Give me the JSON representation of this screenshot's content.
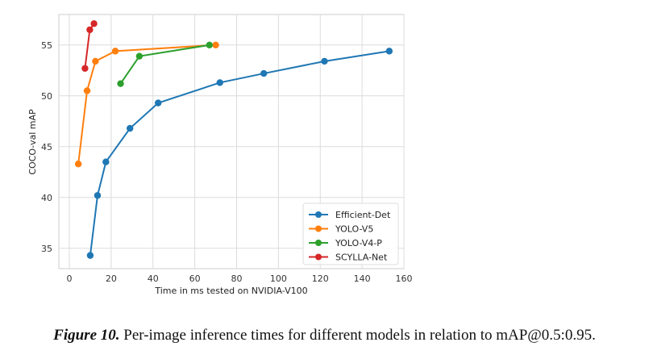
{
  "chart_data": {
    "type": "line",
    "xlabel": "Time in ms tested on NVIDIA-V100",
    "ylabel": "COCO-val mAP",
    "xlim": [
      -5,
      160
    ],
    "ylim": [
      33,
      58
    ],
    "xticks": [
      0,
      20,
      40,
      60,
      80,
      100,
      120,
      140,
      160
    ],
    "yticks": [
      35,
      40,
      45,
      50,
      55
    ],
    "grid": true,
    "legend_position": "lower-right",
    "series": [
      {
        "name": "Efficient-Det",
        "color": "#1f77b4",
        "x": [
          10,
          13.5,
          17.5,
          29,
          42.5,
          72,
          93,
          122,
          153
        ],
        "y": [
          34.3,
          40.2,
          43.5,
          46.8,
          49.3,
          51.3,
          52.2,
          53.4,
          54.4
        ]
      },
      {
        "name": "YOLO-V5",
        "color": "#ff7f0e",
        "x": [
          4.3,
          8.5,
          12.5,
          22,
          70
        ],
        "y": [
          43.3,
          50.5,
          53.4,
          54.4,
          55.0
        ]
      },
      {
        "name": "YOLO-V4-P",
        "color": "#2ca02c",
        "x": [
          24.5,
          33.5,
          67
        ],
        "y": [
          51.2,
          53.9,
          55.0
        ]
      },
      {
        "name": "SCYLLA-Net",
        "color": "#d62728",
        "x": [
          7.5,
          9.8,
          11.8
        ],
        "y": [
          52.7,
          56.5,
          57.1
        ]
      }
    ]
  },
  "caption": {
    "label": "Figure 10.",
    "text": " Per-image inference times for different models in relation to mAP@0.5:0.95."
  }
}
